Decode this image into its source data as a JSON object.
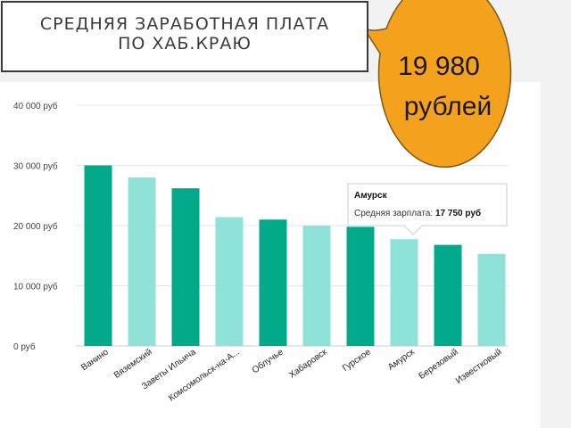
{
  "slide": {
    "title": "СРЕДНЯЯ ЗАРАБОТНАЯ ПЛАТА\nПО ХАБ.КРАЮ",
    "callout_line1": "19 980",
    "callout_line2": "рублей"
  },
  "colors": {
    "dark_bar": "#03a98b",
    "light_bar": "#8fe2d7",
    "callout": "#f4a21d",
    "grid": "#e6e6e6"
  },
  "tooltip": {
    "title": "Амурск",
    "label": "Средняя зарплата: ",
    "value": "17 750 руб"
  },
  "chart_data": {
    "type": "bar",
    "title": "",
    "xlabel": "",
    "ylabel": "",
    "ylim": [
      0,
      40000
    ],
    "y_ticks": [
      0,
      10000,
      20000,
      30000,
      40000
    ],
    "y_tick_labels": [
      "0 руб",
      "10 000 руб",
      "20 000 руб",
      "30 000 руб",
      "40 000 руб"
    ],
    "grid": true,
    "categories": [
      "Ванино",
      "Вяземский",
      "Заветы Ильича",
      "Комсомольск-на-А...",
      "Облучье",
      "Хабаровск",
      "Гурское",
      "Амурск",
      "Березовый",
      "Известковый"
    ],
    "values": [
      30000,
      28000,
      26200,
      21400,
      21000,
      20000,
      19800,
      17750,
      16800,
      15300
    ],
    "bar_shades": [
      "dark",
      "light",
      "dark",
      "light",
      "dark",
      "light",
      "dark",
      "light",
      "dark",
      "light"
    ]
  }
}
